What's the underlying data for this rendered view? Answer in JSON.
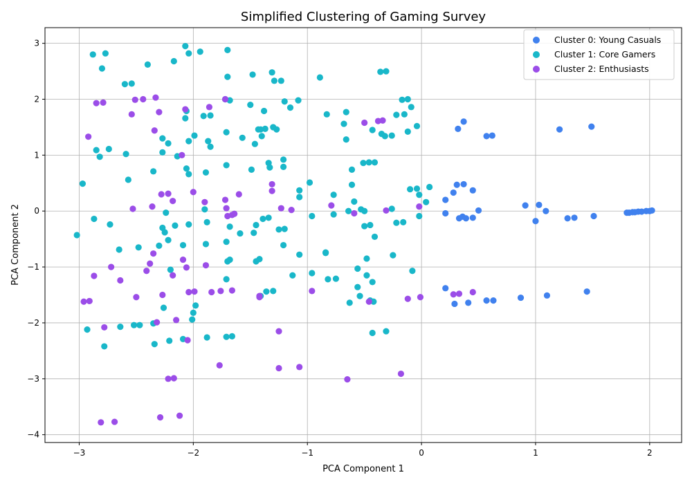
{
  "chart_data": {
    "type": "scatter",
    "title": "Simplified Clustering of Gaming Survey",
    "xlabel": "PCA Component 1",
    "ylabel": "PCA Component 2",
    "xlim": [
      -3.3,
      2.28
    ],
    "ylim": [
      -4.14,
      3.28
    ],
    "xticks": [
      -3,
      -2,
      -1,
      0,
      1,
      2
    ],
    "yticks": [
      -4,
      -3,
      -2,
      -1,
      0,
      1,
      2,
      3
    ],
    "grid": true,
    "legend_position": "top-right",
    "series": [
      {
        "name": "Cluster 0: Young Casuals",
        "color": "#4081ee",
        "points": [
          [
            0.21,
            0.2
          ],
          [
            0.28,
            0.33
          ],
          [
            0.31,
            0.47
          ],
          [
            0.37,
            0.48
          ],
          [
            0.45,
            0.37
          ],
          [
            0.21,
            -0.04
          ],
          [
            0.33,
            -0.13
          ],
          [
            0.36,
            -0.1
          ],
          [
            0.39,
            -0.13
          ],
          [
            0.45,
            -0.12
          ],
          [
            0.5,
            0.01
          ],
          [
            0.32,
            1.47
          ],
          [
            0.37,
            1.6
          ],
          [
            0.57,
            1.34
          ],
          [
            0.62,
            1.35
          ],
          [
            0.21,
            -1.38
          ],
          [
            0.29,
            -1.66
          ],
          [
            0.41,
            -1.64
          ],
          [
            0.57,
            -1.6
          ],
          [
            0.63,
            -1.6
          ],
          [
            0.87,
            -1.55
          ],
          [
            1.1,
            -1.51
          ],
          [
            0.91,
            0.1
          ],
          [
            1.03,
            0.11
          ],
          [
            1.0,
            -0.18
          ],
          [
            1.09,
            0.0
          ],
          [
            1.28,
            -0.13
          ],
          [
            1.34,
            -0.12
          ],
          [
            1.51,
            -0.09
          ],
          [
            1.21,
            1.46
          ],
          [
            1.49,
            1.51
          ],
          [
            1.45,
            -1.44
          ],
          [
            1.8,
            -0.03
          ],
          [
            1.82,
            -0.03
          ],
          [
            1.85,
            -0.02
          ],
          [
            1.87,
            -0.02
          ],
          [
            1.9,
            -0.01
          ],
          [
            1.93,
            -0.01
          ],
          [
            1.97,
            0.0
          ],
          [
            2.0,
            0.0
          ],
          [
            2.02,
            0.01
          ]
        ]
      },
      {
        "name": "Cluster 1: Core Gamers",
        "color": "#19b7c9",
        "points": [
          [
            -3.02,
            -0.43
          ],
          [
            -2.97,
            0.49
          ],
          [
            -2.93,
            -2.12
          ],
          [
            -2.88,
            2.8
          ],
          [
            -2.87,
            -0.14
          ],
          [
            -2.85,
            1.09
          ],
          [
            -2.82,
            0.97
          ],
          [
            -2.8,
            2.55
          ],
          [
            -2.78,
            -2.42
          ],
          [
            -2.77,
            2.82
          ],
          [
            -2.74,
            1.11
          ],
          [
            -2.73,
            -0.24
          ],
          [
            -2.65,
            -0.69
          ],
          [
            -2.64,
            -2.07
          ],
          [
            -2.6,
            2.27
          ],
          [
            -2.59,
            1.02
          ],
          [
            -2.57,
            0.56
          ],
          [
            -2.54,
            2.28
          ],
          [
            -2.52,
            -2.04
          ],
          [
            -2.48,
            -0.65
          ],
          [
            -2.47,
            -2.04
          ],
          [
            -2.4,
            2.62
          ],
          [
            -2.35,
            0.71
          ],
          [
            -2.35,
            -2.01
          ],
          [
            -2.34,
            -2.38
          ],
          [
            -2.3,
            -0.62
          ],
          [
            -2.27,
            1.3
          ],
          [
            -2.27,
            1.05
          ],
          [
            -2.27,
            -0.3
          ],
          [
            -2.26,
            -1.73
          ],
          [
            -2.25,
            -0.38
          ],
          [
            -2.24,
            -0.03
          ],
          [
            -2.22,
            1.21
          ],
          [
            -2.22,
            -0.52
          ],
          [
            -2.21,
            -2.32
          ],
          [
            -2.2,
            -1.05
          ],
          [
            -2.17,
            2.68
          ],
          [
            -2.16,
            -0.26
          ],
          [
            -2.14,
            0.98
          ],
          [
            -2.09,
            -0.61
          ],
          [
            -2.09,
            -2.29
          ],
          [
            -2.07,
            2.95
          ],
          [
            -2.07,
            1.66
          ],
          [
            -2.06,
            1.79
          ],
          [
            -2.06,
            0.76
          ],
          [
            -2.04,
            2.82
          ],
          [
            -2.04,
            0.66
          ],
          [
            -2.04,
            1.25
          ],
          [
            -2.04,
            -0.24
          ],
          [
            -2.01,
            -1.94
          ],
          [
            -2.0,
            -1.82
          ],
          [
            -1.99,
            1.35
          ],
          [
            -1.98,
            -1.69
          ],
          [
            -1.94,
            2.85
          ],
          [
            -1.91,
            1.7
          ],
          [
            -1.9,
            0.03
          ],
          [
            -1.89,
            -0.59
          ],
          [
            -1.89,
            0.69
          ],
          [
            -1.88,
            -0.2
          ],
          [
            -1.88,
            -2.26
          ],
          [
            -1.87,
            1.25
          ],
          [
            -1.85,
            1.71
          ],
          [
            -1.85,
            1.15
          ],
          [
            -1.72,
            2.0
          ],
          [
            -1.71,
            1.41
          ],
          [
            -1.71,
            0.82
          ],
          [
            -1.71,
            -0.55
          ],
          [
            -1.71,
            -1.22
          ],
          [
            -1.71,
            -2.25
          ],
          [
            -1.7,
            2.88
          ],
          [
            -1.7,
            2.4
          ],
          [
            -1.7,
            -0.9
          ],
          [
            -1.68,
            1.98
          ],
          [
            -1.68,
            -0.28
          ],
          [
            -1.68,
            -0.87
          ],
          [
            -1.66,
            -2.24
          ],
          [
            -1.59,
            -0.4
          ],
          [
            -1.57,
            1.31
          ],
          [
            -1.5,
            1.9
          ],
          [
            -1.49,
            0.74
          ],
          [
            -1.48,
            2.44
          ],
          [
            -1.47,
            -0.39
          ],
          [
            -1.46,
            1.2
          ],
          [
            -1.45,
            -0.25
          ],
          [
            -1.45,
            -0.9
          ],
          [
            -1.43,
            1.46
          ],
          [
            -1.42,
            -0.86
          ],
          [
            -1.41,
            -1.52
          ],
          [
            -1.41,
            1.46
          ],
          [
            -1.4,
            1.34
          ],
          [
            -1.39,
            -0.14
          ],
          [
            -1.38,
            1.79
          ],
          [
            -1.37,
            1.47
          ],
          [
            -1.36,
            -1.44
          ],
          [
            -1.34,
            0.86
          ],
          [
            -1.34,
            -0.12
          ],
          [
            -1.33,
            0.78
          ],
          [
            -1.31,
            2.48
          ],
          [
            -1.3,
            1.5
          ],
          [
            -1.3,
            -1.43
          ],
          [
            -1.29,
            2.33
          ],
          [
            -1.27,
            1.46
          ],
          [
            -1.25,
            -0.33
          ],
          [
            -1.23,
            2.33
          ],
          [
            -1.21,
            0.92
          ],
          [
            -1.21,
            0.79
          ],
          [
            -1.21,
            -0.61
          ],
          [
            -1.2,
            1.96
          ],
          [
            -1.2,
            -0.32
          ],
          [
            -1.15,
            1.85
          ],
          [
            -1.13,
            -1.15
          ],
          [
            -1.08,
            1.98
          ],
          [
            -1.07,
            0.37
          ],
          [
            -1.07,
            0.25
          ],
          [
            -1.07,
            -0.78
          ],
          [
            -0.98,
            0.51
          ],
          [
            -0.96,
            -0.09
          ],
          [
            -0.96,
            -1.11
          ],
          [
            -0.89,
            2.39
          ],
          [
            -0.84,
            -0.74
          ],
          [
            -0.84,
            -0.75
          ],
          [
            -0.83,
            1.73
          ],
          [
            -0.82,
            -1.22
          ],
          [
            -0.77,
            0.29
          ],
          [
            -0.77,
            -0.06
          ],
          [
            -0.75,
            -1.21
          ],
          [
            -0.68,
            1.56
          ],
          [
            -0.66,
            1.77
          ],
          [
            -0.66,
            1.28
          ],
          [
            -0.64,
            0.0
          ],
          [
            -0.63,
            -1.64
          ],
          [
            -0.61,
            0.74
          ],
          [
            -0.61,
            0.47
          ],
          [
            -0.59,
            0.17
          ],
          [
            -0.56,
            -1.03
          ],
          [
            -0.56,
            -1.36
          ],
          [
            -0.54,
            -1.52
          ],
          [
            -0.53,
            0.03
          ],
          [
            -0.51,
            0.86
          ],
          [
            -0.5,
            -0.27
          ],
          [
            -0.5,
            0.0
          ],
          [
            -0.48,
            -0.85
          ],
          [
            -0.48,
            -1.15
          ],
          [
            -0.46,
            0.87
          ],
          [
            -0.45,
            -0.25
          ],
          [
            -0.45,
            -1.6
          ],
          [
            -0.43,
            1.45
          ],
          [
            -0.43,
            -1.27
          ],
          [
            -0.43,
            -2.18
          ],
          [
            -0.42,
            -1.62
          ],
          [
            -0.41,
            -0.46
          ],
          [
            -0.41,
            0.87
          ],
          [
            -0.36,
            2.49
          ],
          [
            -0.35,
            1.38
          ],
          [
            -0.32,
            1.34
          ],
          [
            -0.31,
            2.5
          ],
          [
            -0.31,
            -2.15
          ],
          [
            -0.26,
            1.35
          ],
          [
            -0.26,
            0.04
          ],
          [
            -0.25,
            -0.79
          ],
          [
            -0.22,
            1.72
          ],
          [
            -0.22,
            -0.21
          ],
          [
            -0.17,
            1.99
          ],
          [
            -0.16,
            -0.2
          ],
          [
            -0.15,
            1.73
          ],
          [
            -0.12,
            2.0
          ],
          [
            -0.12,
            1.42
          ],
          [
            -0.1,
            0.39
          ],
          [
            -0.09,
            1.86
          ],
          [
            -0.08,
            -1.07
          ],
          [
            -0.04,
            0.4
          ],
          [
            -0.04,
            1.52
          ],
          [
            -0.02,
            0.29
          ],
          [
            -0.02,
            -0.09
          ],
          [
            0.04,
            0.16
          ],
          [
            0.07,
            0.43
          ]
        ]
      },
      {
        "name": "Cluster 2: Enthusiasts",
        "color": "#9b4de8",
        "points": [
          [
            -2.96,
            -1.62
          ],
          [
            -2.92,
            1.33
          ],
          [
            -2.91,
            -1.61
          ],
          [
            -2.87,
            -1.16
          ],
          [
            -2.85,
            1.93
          ],
          [
            -2.81,
            -3.78
          ],
          [
            -2.79,
            1.94
          ],
          [
            -2.78,
            -2.08
          ],
          [
            -2.72,
            -1.0
          ],
          [
            -2.69,
            -3.77
          ],
          [
            -2.64,
            -1.24
          ],
          [
            -2.54,
            1.73
          ],
          [
            -2.53,
            0.04
          ],
          [
            -2.51,
            1.99
          ],
          [
            -2.5,
            -1.54
          ],
          [
            -2.44,
            2.0
          ],
          [
            -2.41,
            -1.07
          ],
          [
            -2.38,
            -0.94
          ],
          [
            -2.36,
            0.08
          ],
          [
            -2.35,
            -0.76
          ],
          [
            -2.34,
            1.44
          ],
          [
            -2.33,
            2.03
          ],
          [
            -2.32,
            -1.99
          ],
          [
            -2.3,
            1.77
          ],
          [
            -2.29,
            -3.69
          ],
          [
            -2.28,
            0.3
          ],
          [
            -2.27,
            -1.5
          ],
          [
            -2.22,
            0.31
          ],
          [
            -2.22,
            -3.0
          ],
          [
            -2.18,
            0.18
          ],
          [
            -2.18,
            -1.15
          ],
          [
            -2.17,
            -2.99
          ],
          [
            -2.15,
            -1.95
          ],
          [
            -2.12,
            -3.66
          ],
          [
            -2.1,
            1.0
          ],
          [
            -2.09,
            -0.87
          ],
          [
            -2.07,
            1.82
          ],
          [
            -2.06,
            -1.01
          ],
          [
            -2.05,
            -2.31
          ],
          [
            -2.04,
            -1.45
          ],
          [
            -2.0,
            0.34
          ],
          [
            -1.99,
            -1.44
          ],
          [
            -1.9,
            0.16
          ],
          [
            -1.89,
            -0.97
          ],
          [
            -1.86,
            1.86
          ],
          [
            -1.84,
            -1.45
          ],
          [
            -1.77,
            -2.76
          ],
          [
            -1.76,
            -1.43
          ],
          [
            -1.72,
            2.0
          ],
          [
            -1.72,
            0.2
          ],
          [
            -1.71,
            0.05
          ],
          [
            -1.7,
            -0.09
          ],
          [
            -1.66,
            -1.42
          ],
          [
            -1.66,
            -0.07
          ],
          [
            -1.64,
            -0.05
          ],
          [
            -1.6,
            0.3
          ],
          [
            -1.42,
            -1.52
          ],
          [
            -1.42,
            -1.54
          ],
          [
            -1.31,
            0.48
          ],
          [
            -1.31,
            0.36
          ],
          [
            -1.25,
            -2.15
          ],
          [
            -1.25,
            -2.81
          ],
          [
            -1.23,
            0.05
          ],
          [
            -1.14,
            0.02
          ],
          [
            -1.07,
            -2.79
          ],
          [
            -0.96,
            -1.43
          ],
          [
            -0.79,
            0.1
          ],
          [
            -0.65,
            -3.01
          ],
          [
            -0.59,
            -0.04
          ],
          [
            -0.5,
            1.58
          ],
          [
            -0.46,
            -1.62
          ],
          [
            -0.38,
            1.61
          ],
          [
            -0.34,
            1.62
          ],
          [
            -0.31,
            0.01
          ],
          [
            -0.18,
            -2.91
          ],
          [
            -0.12,
            -1.57
          ],
          [
            -0.02,
            0.08
          ],
          [
            -0.01,
            -1.54
          ],
          [
            0.28,
            -1.49
          ],
          [
            0.33,
            -1.48
          ],
          [
            0.45,
            -1.45
          ]
        ]
      }
    ]
  }
}
